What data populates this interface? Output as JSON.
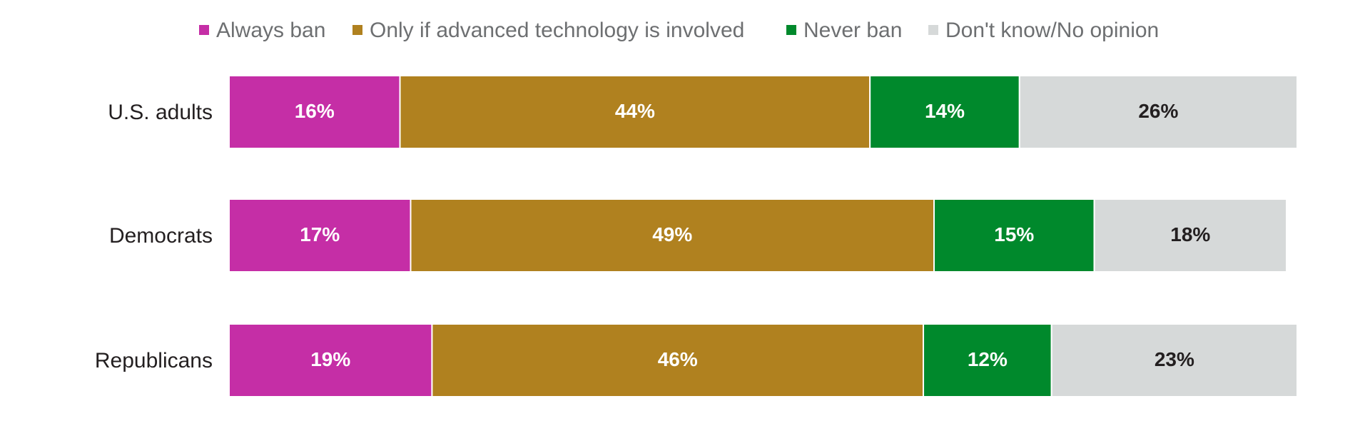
{
  "chart_data": {
    "type": "bar",
    "orientation": "horizontal",
    "stacked": true,
    "legend_placement": "top",
    "grid": false,
    "xlim": [
      0,
      100
    ],
    "categories": [
      "U.S. adults",
      "Democrats",
      "Republicans"
    ],
    "series": [
      {
        "name": "Always ban",
        "color": "#c52ea6",
        "label_color": "#ffffff",
        "values": [
          16,
          17,
          19
        ],
        "labels": [
          "16%",
          "17%",
          "19%"
        ]
      },
      {
        "name": "Only if advanced technology is involved",
        "color": "#b0811f",
        "label_color": "#ffffff",
        "values": [
          44,
          49,
          46
        ],
        "labels": [
          "44%",
          "49%",
          "46%"
        ]
      },
      {
        "name": "Never ban",
        "color": "#00892c",
        "label_color": "#ffffff",
        "values": [
          14,
          15,
          12
        ],
        "labels": [
          "14%",
          "15%",
          "12%"
        ]
      },
      {
        "name": "Don't know/No opinion",
        "color": "#d6d9d9",
        "label_color": "#231f20",
        "values": [
          26,
          18,
          23
        ],
        "labels": [
          "26%",
          "18%",
          "23%"
        ]
      }
    ]
  }
}
